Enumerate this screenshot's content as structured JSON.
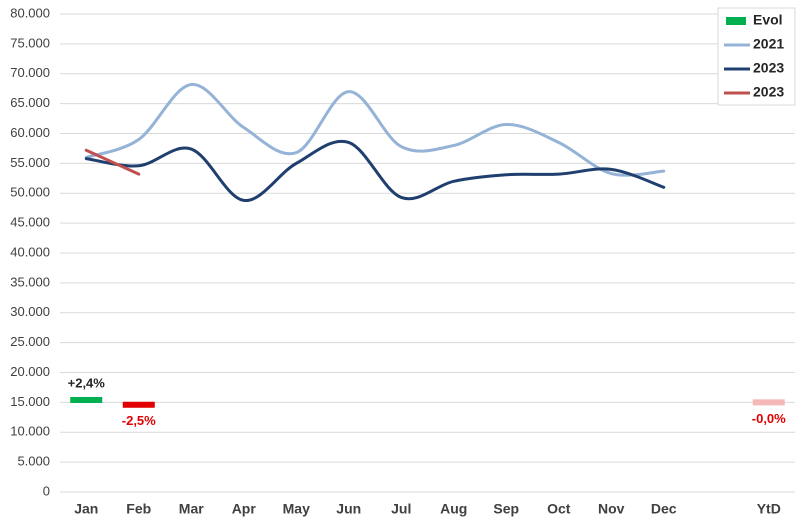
{
  "chart_data": {
    "type": "line",
    "categories": [
      "Jan",
      "Feb",
      "Mar",
      "Apr",
      "May",
      "Jun",
      "Jul",
      "Aug",
      "Sep",
      "Oct",
      "Nov",
      "Dec",
      null,
      "YtD"
    ],
    "ylim": [
      0,
      80000
    ],
    "yticks": [
      0,
      {
        "value": 5000,
        "label": "5.000"
      },
      {
        "value": 10000,
        "label": "10.000"
      },
      {
        "value": 15000,
        "label": "15.000"
      },
      {
        "value": 20000,
        "label": "20.000"
      },
      {
        "value": 25000,
        "label": "25.000"
      },
      {
        "value": 30000,
        "label": "30.000"
      },
      {
        "value": 35000,
        "label": "35.000"
      },
      {
        "value": 40000,
        "label": "40.000"
      },
      {
        "value": 45000,
        "label": "45.000"
      },
      {
        "value": 50000,
        "label": "50.000"
      },
      {
        "value": 55000,
        "label": "55.000"
      },
      {
        "value": 60000,
        "label": "60.000"
      },
      {
        "value": 65000,
        "label": "65.000"
      },
      {
        "value": 70000,
        "label": "70.000"
      },
      {
        "value": 75000,
        "label": "75.000"
      },
      {
        "value": 80000,
        "label": "80.000"
      }
    ],
    "grid": true,
    "legend": "top-right",
    "series": [
      {
        "name": "Evol",
        "type": "marker",
        "color": "#00b050",
        "values": [
          15400,
          14600,
          null,
          null,
          null,
          null,
          null,
          null,
          null,
          null,
          null,
          null,
          null,
          15000
        ],
        "colors": [
          "#00b050",
          "#e00000",
          null,
          null,
          null,
          null,
          null,
          null,
          null,
          null,
          null,
          null,
          null,
          "#f4b8b8"
        ],
        "annotations": [
          "+2,4%",
          "-2,5%",
          null,
          null,
          null,
          null,
          null,
          null,
          null,
          null,
          null,
          null,
          null,
          "-0,0%"
        ],
        "annotation_colors": [
          "#262626",
          "#e00000",
          null,
          null,
          null,
          null,
          null,
          null,
          null,
          null,
          null,
          null,
          null,
          "#e00000"
        ]
      },
      {
        "name": "2021",
        "color": "#95b3d7",
        "values": [
          56000,
          59000,
          68200,
          61000,
          56800,
          67000,
          57800,
          58000,
          61500,
          58500,
          53300,
          53700,
          null,
          null
        ]
      },
      {
        "name": "2023",
        "color": "#1f3f6f",
        "values": [
          55800,
          54600,
          57400,
          48800,
          55000,
          58500,
          49300,
          52000,
          53100,
          53200,
          54000,
          51000,
          null,
          null
        ]
      },
      {
        "name": "2023",
        "color": "#c0504d",
        "values": [
          57200,
          53200,
          null,
          null,
          null,
          null,
          null,
          null,
          null,
          null,
          null,
          null,
          null,
          null
        ]
      }
    ]
  }
}
